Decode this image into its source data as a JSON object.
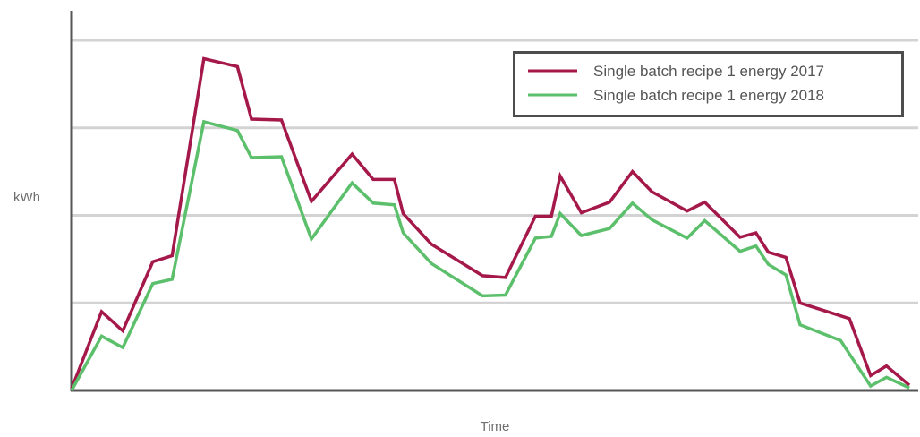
{
  "chart_data": {
    "type": "line",
    "title": "",
    "xlabel": "Time",
    "ylabel": "kWh",
    "xlim": [
      0,
      48
    ],
    "ylim": [
      0,
      4
    ],
    "y_gridlines": [
      1,
      2,
      3,
      4
    ],
    "x_tick_labels": [],
    "y_tick_labels": [],
    "grid": true,
    "legend_position": "top-right",
    "series": [
      {
        "name": "Single batch recipe 1 energy 2017",
        "color": "#a4184a",
        "points": [
          [
            0,
            0.02
          ],
          [
            1.7,
            0.9
          ],
          [
            2.9,
            0.68
          ],
          [
            4.6,
            1.47
          ],
          [
            5.7,
            1.54
          ],
          [
            7.5,
            3.79
          ],
          [
            9.4,
            3.7
          ],
          [
            10.2,
            3.1
          ],
          [
            11.9,
            3.09
          ],
          [
            13.6,
            2.16
          ],
          [
            15.9,
            2.7
          ],
          [
            17.1,
            2.41
          ],
          [
            18.3,
            2.41
          ],
          [
            18.8,
            2.02
          ],
          [
            20.4,
            1.67
          ],
          [
            23.3,
            1.31
          ],
          [
            24.6,
            1.29
          ],
          [
            26.3,
            1.99
          ],
          [
            27.2,
            1.99
          ],
          [
            27.7,
            2.45
          ],
          [
            28.9,
            2.03
          ],
          [
            30.5,
            2.15
          ],
          [
            31.8,
            2.5
          ],
          [
            32.9,
            2.27
          ],
          [
            34.9,
            2.05
          ],
          [
            35.9,
            2.15
          ],
          [
            37.9,
            1.75
          ],
          [
            38.8,
            1.8
          ],
          [
            39.5,
            1.58
          ],
          [
            40.5,
            1.52
          ],
          [
            41.3,
            1.0
          ],
          [
            44.1,
            0.82
          ],
          [
            45.3,
            0.17
          ],
          [
            46.2,
            0.28
          ],
          [
            47.5,
            0.06
          ]
        ]
      },
      {
        "name": "Single batch recipe 1 energy 2018",
        "color": "#5cbf6b",
        "points": [
          [
            0,
            0.0
          ],
          [
            1.7,
            0.62
          ],
          [
            2.9,
            0.49
          ],
          [
            4.6,
            1.22
          ],
          [
            5.7,
            1.27
          ],
          [
            7.5,
            3.07
          ],
          [
            9.4,
            2.97
          ],
          [
            10.2,
            2.66
          ],
          [
            11.9,
            2.67
          ],
          [
            13.6,
            1.73
          ],
          [
            15.9,
            2.37
          ],
          [
            17.1,
            2.14
          ],
          [
            18.3,
            2.12
          ],
          [
            18.8,
            1.8
          ],
          [
            20.4,
            1.45
          ],
          [
            23.3,
            1.08
          ],
          [
            24.6,
            1.09
          ],
          [
            26.3,
            1.74
          ],
          [
            27.2,
            1.76
          ],
          [
            27.7,
            2.02
          ],
          [
            28.9,
            1.77
          ],
          [
            30.5,
            1.85
          ],
          [
            31.8,
            2.14
          ],
          [
            32.9,
            1.95
          ],
          [
            34.9,
            1.74
          ],
          [
            35.9,
            1.94
          ],
          [
            37.9,
            1.59
          ],
          [
            38.8,
            1.65
          ],
          [
            39.5,
            1.44
          ],
          [
            40.5,
            1.32
          ],
          [
            41.3,
            0.75
          ],
          [
            43.6,
            0.57
          ],
          [
            45.3,
            0.05
          ],
          [
            46.2,
            0.15
          ],
          [
            47.5,
            0.03
          ]
        ]
      }
    ]
  },
  "colors": {
    "axis": "#555555",
    "grid": "#d3d3d3",
    "legend_border": "#4d4d4d"
  }
}
